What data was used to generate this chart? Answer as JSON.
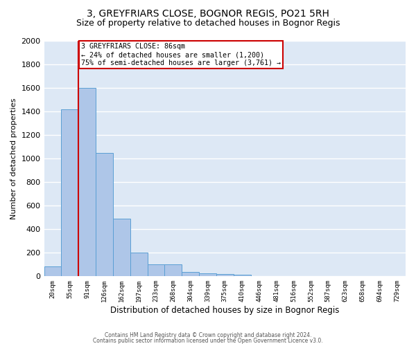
{
  "title": "3, GREYFRIARS CLOSE, BOGNOR REGIS, PO21 5RH",
  "subtitle": "Size of property relative to detached houses in Bognor Regis",
  "xlabel": "Distribution of detached houses by size in Bognor Regis",
  "ylabel": "Number of detached properties",
  "categories": [
    "20sqm",
    "55sqm",
    "91sqm",
    "126sqm",
    "162sqm",
    "197sqm",
    "233sqm",
    "268sqm",
    "304sqm",
    "339sqm",
    "375sqm",
    "410sqm",
    "446sqm",
    "481sqm",
    "516sqm",
    "552sqm",
    "587sqm",
    "623sqm",
    "658sqm",
    "694sqm",
    "729sqm"
  ],
  "values": [
    85,
    1420,
    1600,
    1050,
    490,
    200,
    100,
    100,
    40,
    25,
    20,
    15,
    0,
    0,
    0,
    0,
    0,
    0,
    0,
    0,
    0
  ],
  "bar_color": "#aec6e8",
  "bar_edge_color": "#5a9fd4",
  "red_line_x": 1.5,
  "annotation_line1": "3 GREYFRIARS CLOSE: 86sqm",
  "annotation_line2": "← 24% of detached houses are smaller (1,200)",
  "annotation_line3": "75% of semi-detached houses are larger (3,761) →",
  "annotation_box_color": "#ffffff",
  "annotation_box_edge": "#cc0000",
  "ylim": [
    0,
    2000
  ],
  "yticks": [
    0,
    200,
    400,
    600,
    800,
    1000,
    1200,
    1400,
    1600,
    1800,
    2000
  ],
  "plot_bg_color": "#dde8f5",
  "fig_bg_color": "#ffffff",
  "grid_color": "#ffffff",
  "footer1": "Contains HM Land Registry data © Crown copyright and database right 2024.",
  "footer2": "Contains public sector information licensed under the Open Government Licence v3.0.",
  "title_fontsize": 10,
  "subtitle_fontsize": 9
}
